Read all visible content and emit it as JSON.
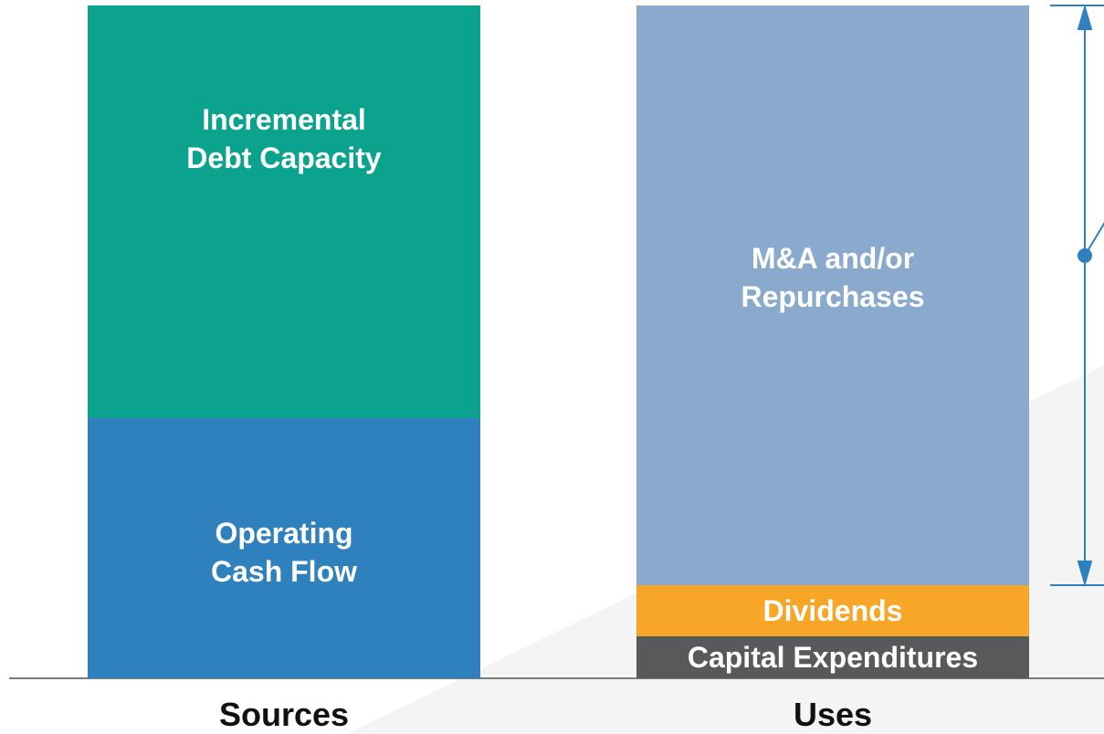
{
  "columns": [
    {
      "label": "Sources",
      "blocks": [
        {
          "lines": [
            "Incremental",
            "Debt Capacity"
          ]
        },
        {
          "lines": [
            "Operating",
            "Cash Flow"
          ]
        }
      ]
    },
    {
      "label": "Uses",
      "blocks": [
        {
          "lines": [
            "M&A and/or",
            "Repurchases"
          ]
        },
        {
          "lines": [
            "Dividends"
          ]
        },
        {
          "lines": [
            "Capital Expenditures"
          ]
        }
      ]
    }
  ]
}
